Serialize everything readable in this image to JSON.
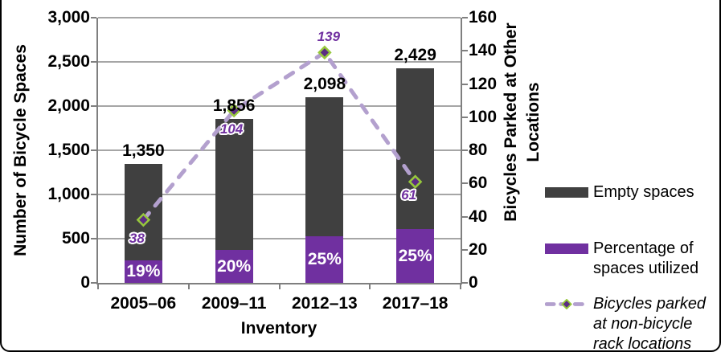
{
  "figure": {
    "background": "#ffffff",
    "border_color": "#000000"
  },
  "chart_data": {
    "type": "bar",
    "subtype": "stacked-bars-with-line-overlay",
    "categories": [
      "2005–06",
      "2009–11",
      "2012–13",
      "2017–18"
    ],
    "xlabel": "Inventory",
    "grid": true,
    "left_axis": {
      "label": "Number of Bicycle Spaces",
      "min": 0,
      "max": 3000,
      "tick_step": 500,
      "tick_labels": [
        "0",
        "500",
        "1,000",
        "1,500",
        "2,000",
        "2,500",
        "3,000"
      ]
    },
    "right_axis": {
      "label": "Bicycles Parked at Other Locations",
      "min": 0,
      "max": 160,
      "tick_step": 20,
      "tick_labels": [
        "0",
        "20",
        "40",
        "60",
        "80",
        "100",
        "120",
        "140",
        "160"
      ]
    },
    "bar_totals": [
      1350,
      1856,
      2098,
      2429
    ],
    "bar_total_labels": [
      "1,350",
      "1,856",
      "2,098",
      "2,429"
    ],
    "series": [
      {
        "name": "Percentage of spaces utilized",
        "type": "bar-segment-bottom",
        "color": "#7030a0",
        "percent_utilized": [
          19,
          20,
          25,
          25
        ],
        "segment_labels": [
          "19%",
          "20%",
          "25%",
          "25%"
        ]
      },
      {
        "name": "Empty spaces",
        "type": "bar-segment-top",
        "color": "#404040"
      },
      {
        "name": "Bicycles parked at non-bicycle rack locations",
        "type": "line",
        "axis": "right",
        "values": [
          38,
          104,
          139,
          61
        ],
        "value_labels": [
          "38",
          "104",
          "139",
          "61"
        ],
        "line_color": "#b3a0ce",
        "marker": "diamond",
        "marker_fill": "#5b2c83",
        "marker_stroke": "#97c83c",
        "label_color": "#7030a0"
      }
    ],
    "legend_position": "right"
  },
  "legend": {
    "items": [
      {
        "label": "Empty spaces"
      },
      {
        "label": "Percentage of spaces utilized"
      },
      {
        "label": "Bicycles parked at non-bicycle rack locations"
      }
    ]
  }
}
